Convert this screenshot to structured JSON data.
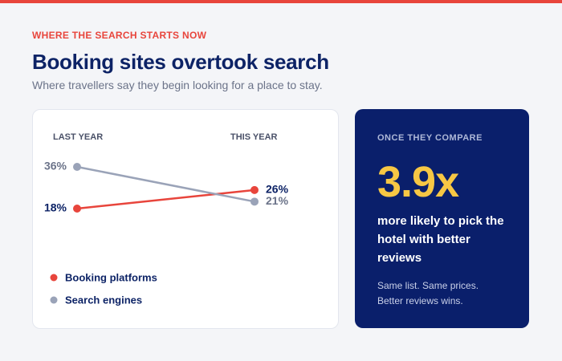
{
  "header": {
    "kicker": "WHERE THE SEARCH STARTS NOW",
    "title": "Booking sites overtook search",
    "subtitle": "Where travellers say they begin looking for a place to stay."
  },
  "chart_data": {
    "type": "slope",
    "categories": [
      "LAST YEAR",
      "THIS YEAR"
    ],
    "series": [
      {
        "name": "Booking platforms",
        "color": "#e8453c",
        "values": [
          18,
          26
        ],
        "value_labels": [
          "18%",
          "26%"
        ]
      },
      {
        "name": "Search engines",
        "color": "#9aa3b8",
        "values": [
          36,
          21
        ],
        "value_labels": [
          "36%",
          "21%"
        ]
      }
    ]
  },
  "callout": {
    "kicker": "ONCE THEY COMPARE",
    "figure": "3.9x",
    "text": "more likely to pick the hotel with better reviews",
    "note": "Same list. Same prices. Better reviews wins."
  }
}
